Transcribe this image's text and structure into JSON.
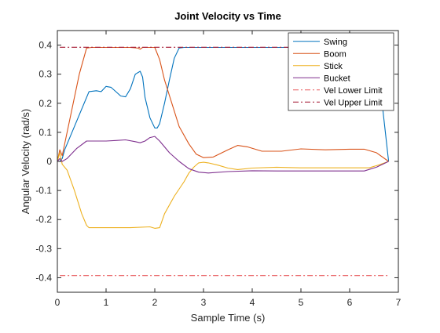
{
  "chart_data": {
    "type": "line",
    "title": "Joint Velocity vs Time",
    "xlabel": "Sample Time (s)",
    "ylabel": "Angular Velocity (rad/s)",
    "xlim": [
      0,
      7
    ],
    "ylim": [
      -0.45,
      0.45
    ],
    "x_ticks": [
      0,
      1,
      2,
      3,
      4,
      5,
      6,
      7
    ],
    "x_tick_labels": [
      "0",
      "1",
      "2",
      "3",
      "4",
      "5",
      "6",
      "7"
    ],
    "y_ticks": [
      0.4,
      0.3,
      0.2,
      0.1,
      0,
      -0.1,
      -0.2,
      -0.3,
      -0.4
    ],
    "y_tick_labels": [
      "0.4",
      "0.3",
      "0.2",
      "0.1",
      "0",
      "-0.1",
      "-0.2",
      "-0.3",
      "-0.4"
    ],
    "grid": false,
    "legend_position": "top-right",
    "series": [
      {
        "name": "Swing",
        "color": "#0072BD",
        "style": "solid",
        "x": [
          0,
          0.05,
          0.1,
          0.15,
          0.3,
          0.5,
          0.65,
          0.8,
          0.9,
          1.0,
          1.1,
          1.2,
          1.3,
          1.4,
          1.5,
          1.6,
          1.7,
          1.75,
          1.8,
          1.9,
          2.0,
          2.05,
          2.1,
          2.2,
          2.3,
          2.4,
          2.5,
          2.6,
          3.0,
          4.0,
          5.0,
          6.0,
          6.5,
          6.6,
          6.7,
          6.8
        ],
        "y": [
          0,
          0.0,
          0.01,
          0.04,
          0.1,
          0.18,
          0.24,
          0.243,
          0.24,
          0.258,
          0.255,
          0.24,
          0.225,
          0.222,
          0.25,
          0.3,
          0.31,
          0.29,
          0.22,
          0.15,
          0.115,
          0.115,
          0.13,
          0.2,
          0.28,
          0.355,
          0.39,
          0.392,
          0.392,
          0.392,
          0.392,
          0.392,
          0.392,
          0.3,
          0.15,
          0.0
        ]
      },
      {
        "name": "Boom",
        "color": "#D95319",
        "style": "solid",
        "x": [
          0,
          0.05,
          0.1,
          0.15,
          0.3,
          0.45,
          0.6,
          0.7,
          1.5,
          1.65,
          1.7,
          1.75,
          2.0,
          2.1,
          2.2,
          2.35,
          2.5,
          2.7,
          2.85,
          3.0,
          3.2,
          3.5,
          3.7,
          3.9,
          4.2,
          4.6,
          5.0,
          5.5,
          6.0,
          6.3,
          6.55,
          6.8
        ],
        "y": [
          0,
          0.04,
          0.02,
          0.06,
          0.18,
          0.3,
          0.39,
          0.392,
          0.392,
          0.39,
          0.386,
          0.392,
          0.392,
          0.35,
          0.28,
          0.2,
          0.12,
          0.06,
          0.025,
          0.013,
          0.015,
          0.04,
          0.055,
          0.05,
          0.035,
          0.035,
          0.043,
          0.04,
          0.042,
          0.042,
          0.03,
          0.0
        ]
      },
      {
        "name": "Stick",
        "color": "#EDB120",
        "style": "solid",
        "x": [
          0,
          0.05,
          0.1,
          0.2,
          0.35,
          0.5,
          0.6,
          0.65,
          1.0,
          1.5,
          1.9,
          2.0,
          2.1,
          2.2,
          2.4,
          2.6,
          2.7,
          2.8,
          2.9,
          3.0,
          3.1,
          3.3,
          3.5,
          3.7,
          4.0,
          4.5,
          5.0,
          5.5,
          6.0,
          6.4,
          6.6,
          6.8
        ],
        "y": [
          0,
          0.03,
          -0.01,
          -0.03,
          -0.1,
          -0.18,
          -0.22,
          -0.228,
          -0.228,
          -0.228,
          -0.225,
          -0.23,
          -0.228,
          -0.18,
          -0.12,
          -0.07,
          -0.04,
          -0.02,
          -0.005,
          -0.003,
          -0.005,
          -0.013,
          -0.023,
          -0.028,
          -0.023,
          -0.02,
          -0.022,
          -0.022,
          -0.022,
          -0.022,
          -0.012,
          0.0
        ]
      },
      {
        "name": "Bucket",
        "color": "#7E2F8E",
        "style": "solid",
        "x": [
          0,
          0.05,
          0.1,
          0.2,
          0.4,
          0.6,
          0.8,
          1.0,
          1.2,
          1.4,
          1.6,
          1.7,
          1.8,
          1.9,
          2.0,
          2.1,
          2.3,
          2.5,
          2.7,
          2.9,
          3.1,
          3.5,
          4.0,
          4.5,
          5.0,
          5.5,
          6.0,
          6.3,
          6.55,
          6.8
        ],
        "y": [
          0,
          0.01,
          0.0,
          0.01,
          0.045,
          0.07,
          0.07,
          0.07,
          0.072,
          0.074,
          0.068,
          0.064,
          0.07,
          0.082,
          0.086,
          0.07,
          0.03,
          0.0,
          -0.025,
          -0.037,
          -0.04,
          -0.035,
          -0.032,
          -0.033,
          -0.033,
          -0.033,
          -0.033,
          -0.033,
          -0.02,
          0.0
        ]
      },
      {
        "name": "Vel Lower Limit",
        "color": "#E8585A",
        "style": "dashdot",
        "x": [
          0.05,
          6.8
        ],
        "y": [
          -0.3927,
          -0.3927
        ]
      },
      {
        "name": "Vel Upper Limit",
        "color": "#A2142F",
        "style": "dashdot",
        "x": [
          0.05,
          6.8
        ],
        "y": [
          0.3927,
          0.3927
        ]
      }
    ]
  }
}
